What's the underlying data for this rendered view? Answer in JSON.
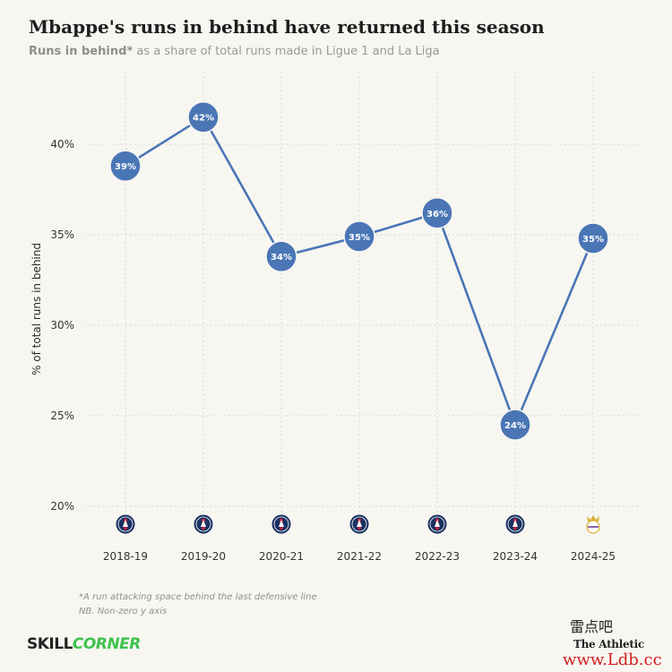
{
  "header": {
    "title": "Mbappe's runs in behind have returned this season",
    "subtitle_bold": "Runs in behind*",
    "subtitle_rest": " as a share of total runs made in Ligue 1 and La Liga"
  },
  "chart_data": {
    "type": "line",
    "ylabel": "% of total runs in behind",
    "ylim": [
      20,
      42.5
    ],
    "yticks": [
      20,
      25,
      30,
      35,
      40
    ],
    "ytick_labels": [
      "20%",
      "25%",
      "30%",
      "35%",
      "40%"
    ],
    "grid": true,
    "categories": [
      "2018-19",
      "2019-20",
      "2020-21",
      "2021-22",
      "2022-23",
      "2023-24",
      "2024-25"
    ],
    "series": [
      {
        "values": [
          38.8,
          41.5,
          33.8,
          34.9,
          36.2,
          24.5,
          34.8
        ],
        "data_labels": [
          "39%",
          "42%",
          "34%",
          "35%",
          "36%",
          "24%",
          "35%"
        ],
        "color": "#4a76b6"
      }
    ],
    "club_badges": [
      "psg-badge-icon",
      "psg-badge-icon",
      "psg-badge-icon",
      "psg-badge-icon",
      "psg-badge-icon",
      "psg-badge-icon",
      "real-madrid-badge-icon"
    ]
  },
  "footnotes": {
    "line1": "*A run attacking space behind the last defensive line",
    "line2": "NB. Non-zero y axis"
  },
  "branding": {
    "skill": "SKILL",
    "corner": "CORNER",
    "athletic": "The Athletic",
    "watermark_cn": "雷点吧",
    "watermark_url": "www.Ldb.cc"
  },
  "colors": {
    "line": "#4a76b6",
    "psg_navy": "#1a3263",
    "psg_red": "#d41e35",
    "skillcorner_green": "#3ec24d"
  }
}
